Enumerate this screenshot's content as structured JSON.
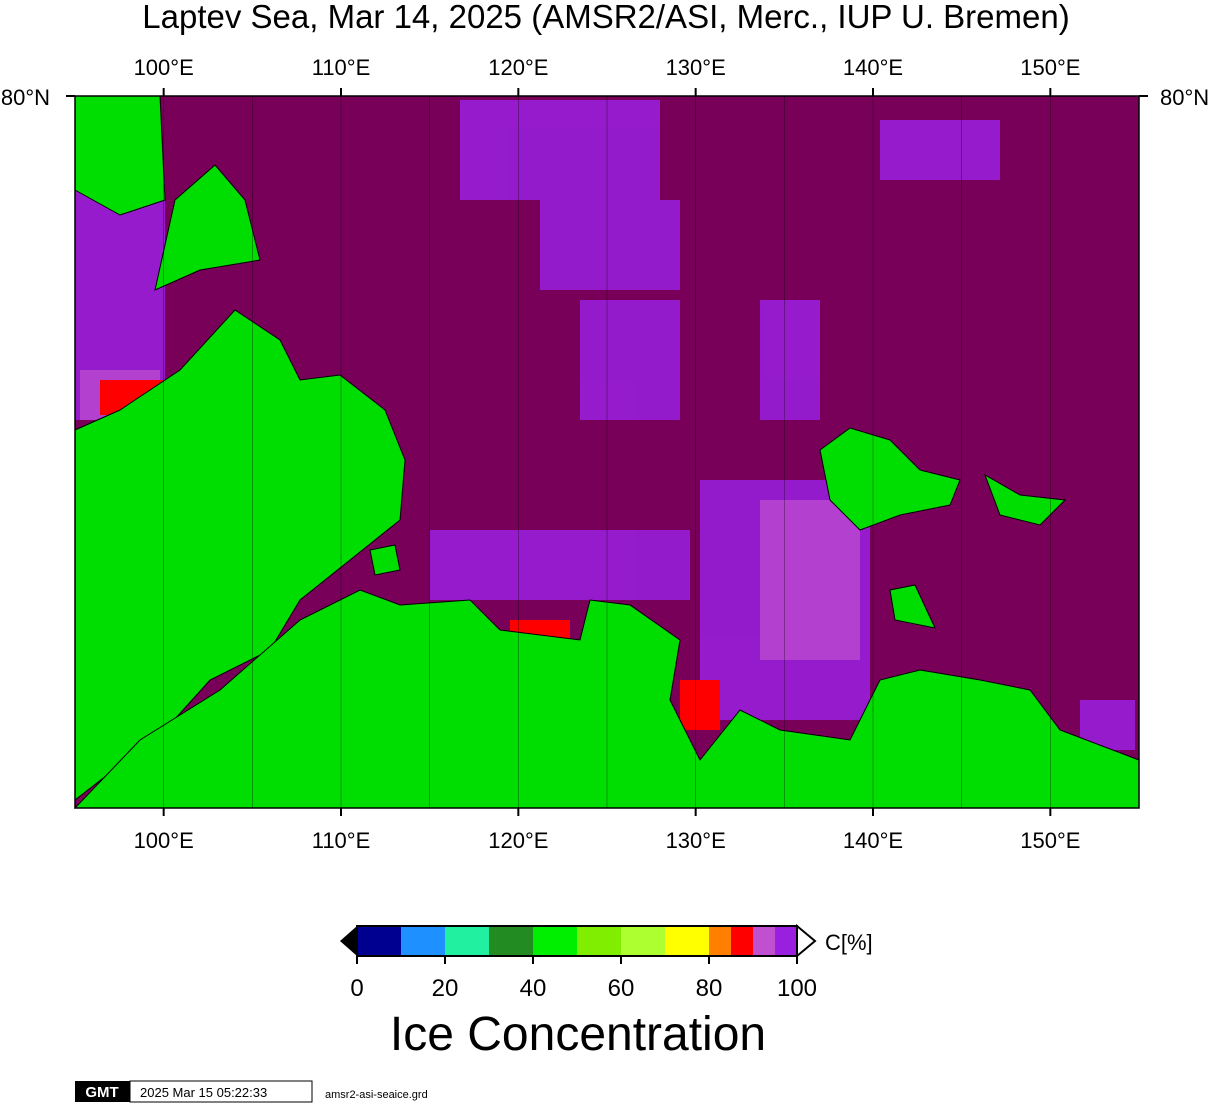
{
  "title": "Laptev Sea, Mar 14, 2025 (AMSR2/ASI, Merc., IUP U. Bremen)",
  "map": {
    "lon_range": [
      95,
      155
    ],
    "lon_ticks": [
      {
        "value": 100,
        "label": "100°E"
      },
      {
        "value": 110,
        "label": "110°E"
      },
      {
        "value": 120,
        "label": "120°E"
      },
      {
        "value": 130,
        "label": "130°E"
      },
      {
        "value": 140,
        "label": "140°E"
      },
      {
        "value": 150,
        "label": "150°E"
      }
    ],
    "lon_minor": [
      95,
      105,
      115,
      125,
      135,
      145,
      155
    ],
    "lat_label": "80°N"
  },
  "colorbar": {
    "range": [
      0,
      100
    ],
    "ticks": [
      0,
      20,
      40,
      60,
      80,
      100
    ],
    "bounds": [
      0,
      10,
      20,
      30,
      40,
      50,
      60,
      70,
      80,
      85,
      90,
      95,
      100
    ],
    "colors": [
      "#000090",
      "#1e90ff",
      "#20f0a0",
      "#228b22",
      "#00ee00",
      "#7fee00",
      "#adff2f",
      "#ffff00",
      "#ff8000",
      "#ff0000",
      "#c050d0",
      "#9a20e0"
    ],
    "unit": "C[%]",
    "title": "Ice Concentration"
  },
  "footer": {
    "logo": "GMT",
    "timestamp": "2025 Mar 15 05:22:33",
    "file": "amsr2-asi-seaice.grd"
  }
}
